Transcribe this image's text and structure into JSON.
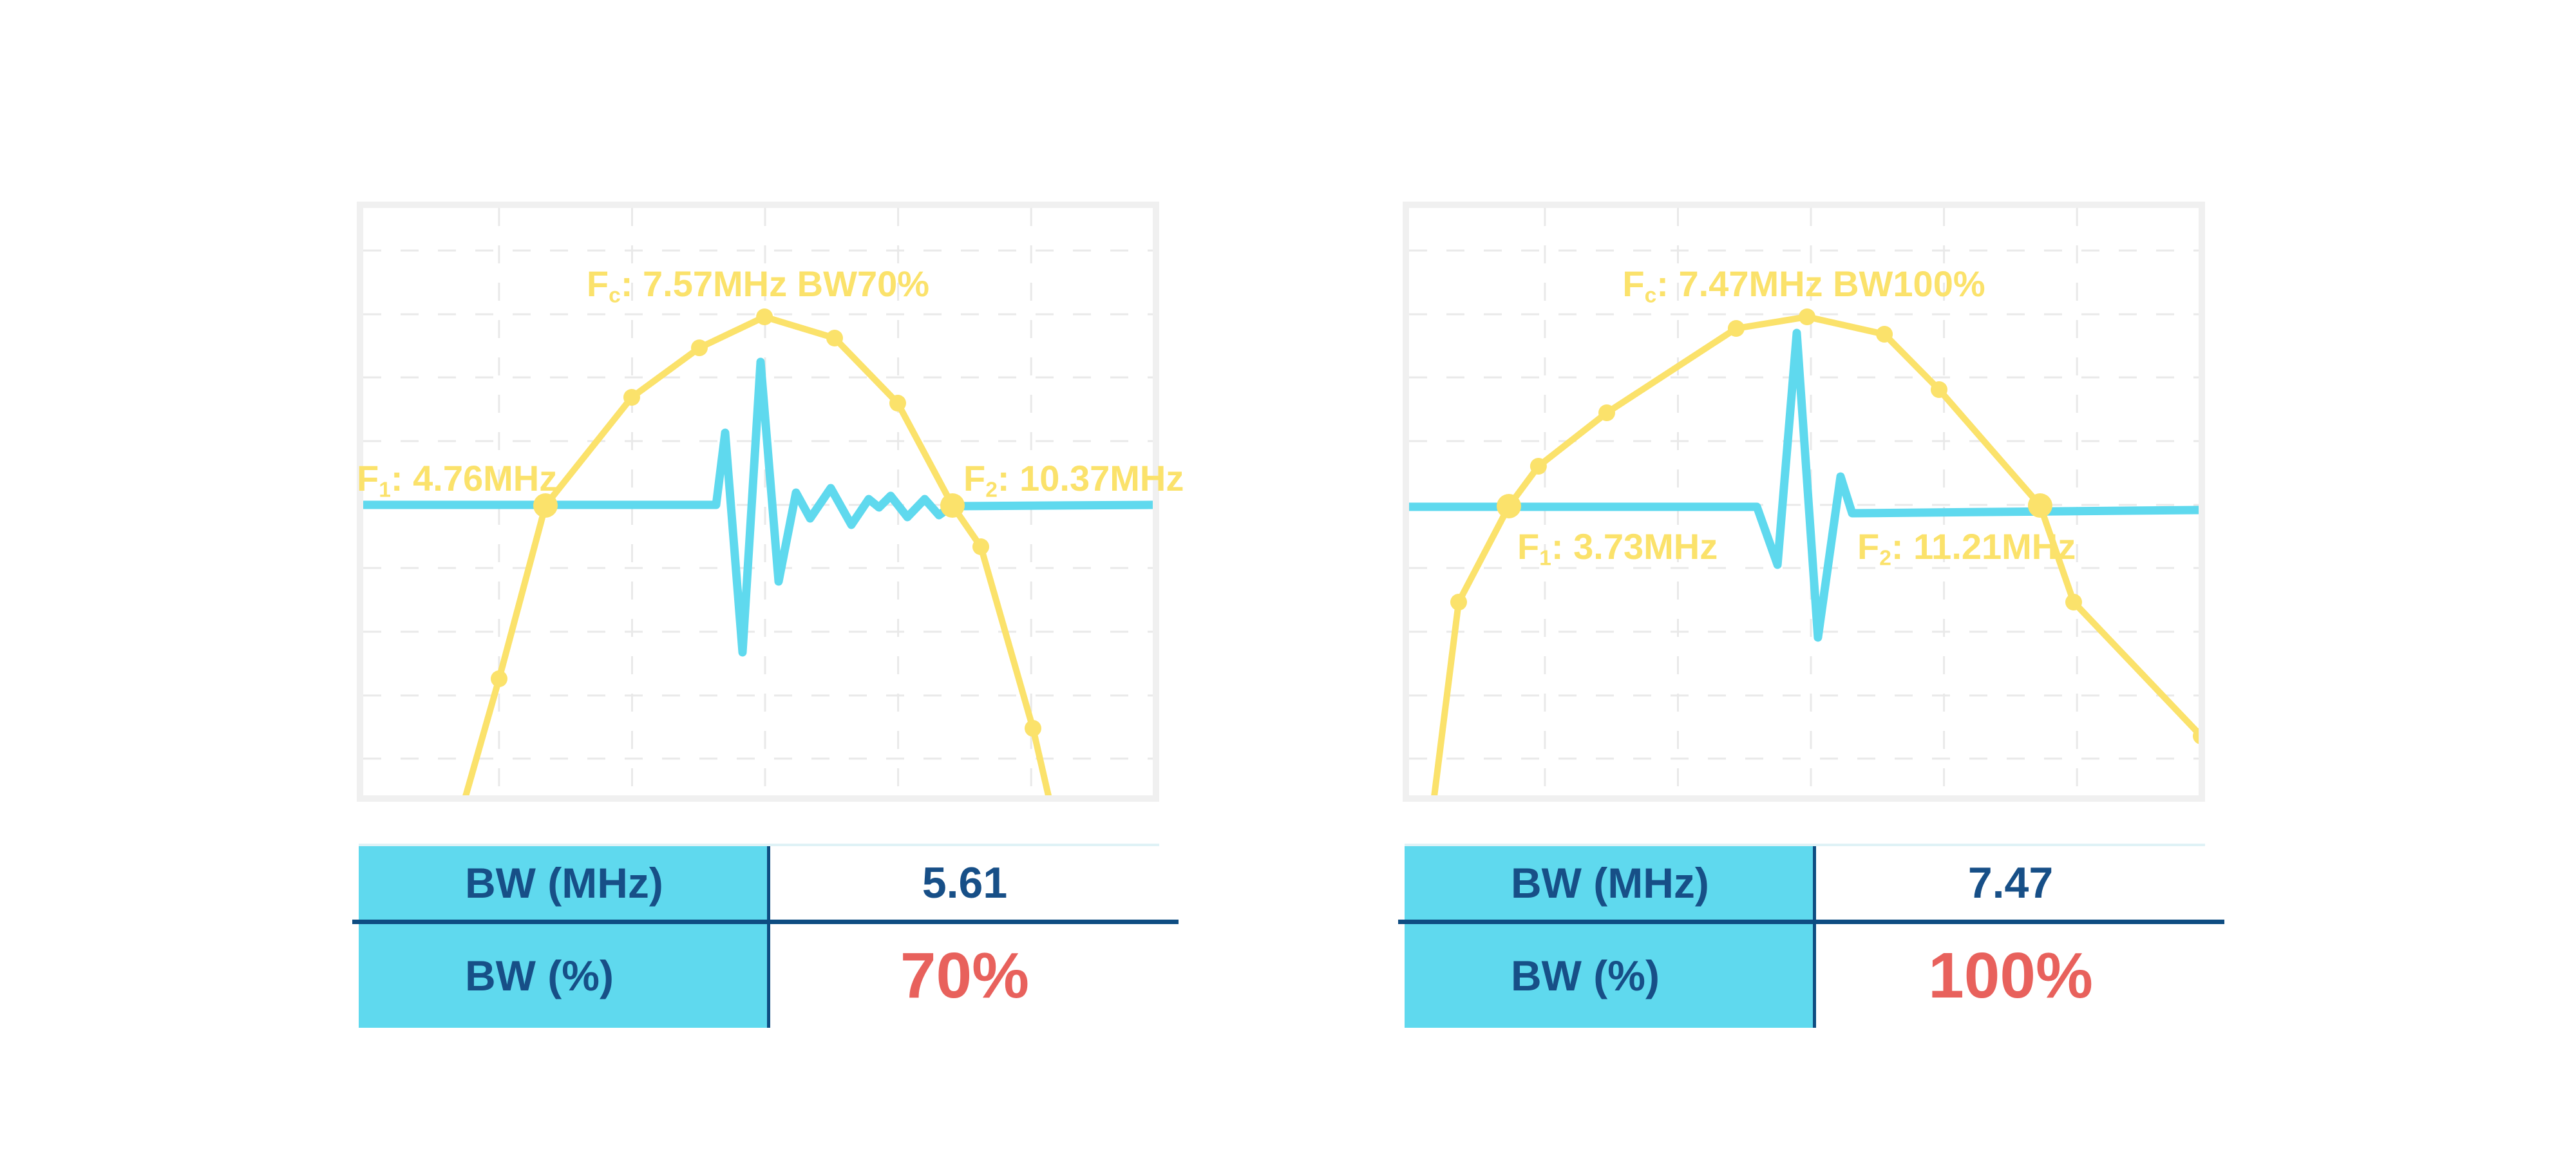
{
  "colors": {
    "yellow": "#FBE26B",
    "cyan": "#5FD9EE",
    "navy_text": "#174F87",
    "navy_line": "#0E4D82",
    "red": "#E8615C",
    "grid": "#E9E9E9",
    "frame": "#F0F0F0",
    "table_topline": "#DFF2F6"
  },
  "panels": [
    {
      "id": "bw70",
      "labels": {
        "fc": {
          "f": "F",
          "sub": "c",
          "text": ": 7.57MHz BW70%"
        },
        "f1": {
          "f": "F",
          "sub": "1",
          "text": ": 4.76MHz"
        },
        "f2": {
          "f": "F",
          "sub": "2",
          "text": ": 10.37MHz"
        }
      },
      "table": {
        "rows": [
          {
            "label": "BW (MHz)",
            "value": "5.61"
          },
          {
            "label": "BW (%)",
            "value": "70%"
          }
        ]
      },
      "chart_data": {
        "type": "line",
        "description": "Transducer frequency spectrum envelope (yellow, with point markers) and RF pulse-echo waveform with ringing (cyan); no axis ticks or labels shown",
        "values": {
          "fc_mhz": 7.57,
          "f1_mhz": 4.76,
          "f2_mhz": 10.37,
          "bw_mhz": 5.61,
          "bw_pct": 70
        },
        "baseline_frac": 0.5055,
        "grid": {
          "v_fracs": [
            0.172,
            0.3405,
            0.509,
            0.6775,
            0.846
          ],
          "h_fracs": [
            0.0724,
            0.1809,
            0.2884,
            0.3969,
            0.5055,
            0.6129,
            0.7215,
            0.83,
            0.9375
          ]
        },
        "series": [
          {
            "name": "spectrum-envelope",
            "color_key": "yellow",
            "points_frac": [
              [
                0.1289,
                1.0055
              ],
              [
                0.1721,
                0.8015
              ],
              [
                0.2308,
                0.5066
              ],
              [
                0.3401,
                0.3224
              ],
              [
                0.4258,
                0.238
              ],
              [
                0.5082,
                0.1853
              ],
              [
                0.5971,
                0.2215
              ],
              [
                0.677,
                0.3322
              ],
              [
                0.7463,
                0.5066
              ],
              [
                0.7822,
                0.5768
              ],
              [
                0.8483,
                0.886
              ],
              [
                0.8711,
                1.0197
              ]
            ]
          },
          {
            "name": "rf-pulse",
            "color_key": "cyan",
            "points_frac": [
              [
                0,
                0.5055
              ],
              [
                0.447,
                0.5055
              ],
              [
                0.4584,
                0.3827
              ],
              [
                0.4804,
                0.7566
              ],
              [
                0.5033,
                0.2621
              ],
              [
                0.5261,
                0.636
              ],
              [
                0.5481,
                0.4846
              ],
              [
                0.5661,
                0.5285
              ],
              [
                0.5922,
                0.477
              ],
              [
                0.6183,
                0.5395
              ],
              [
                0.6403,
                0.4956
              ],
              [
                0.6533,
                0.5099
              ],
              [
                0.668,
                0.4901
              ],
              [
                0.6892,
                0.5263
              ],
              [
                0.7112,
                0.4956
              ],
              [
                0.7292,
                0.523
              ],
              [
                0.7455,
                0.5077
              ],
              [
                1,
                0.5055
              ]
            ]
          }
        ],
        "marker_indices": [
          1,
          2,
          3,
          4,
          5,
          6,
          7,
          8,
          9,
          10
        ],
        "big_marker_indices": [
          2,
          8
        ]
      }
    },
    {
      "id": "bw100",
      "labels": {
        "fc": {
          "f": "F",
          "sub": "c",
          "text": ": 7.47MHz BW100%"
        },
        "f1": {
          "f": "F",
          "sub": "1",
          "text": ": 3.73MHz"
        },
        "f2": {
          "f": "F",
          "sub": "2",
          "text": ": 11.21MHz"
        }
      },
      "table": {
        "rows": [
          {
            "label": "BW (MHz)",
            "value": "7.47"
          },
          {
            "label": "BW (%)",
            "value": "100%"
          }
        ]
      },
      "chart_data": {
        "type": "line",
        "description": "Broadband transducer frequency spectrum envelope (yellow, with point markers) and short RF pulse waveform (cyan); no axis ticks or labels shown",
        "values": {
          "fc_mhz": 7.47,
          "f1_mhz": 3.73,
          "f2_mhz": 11.21,
          "bw_mhz": 7.47,
          "bw_pct": 100
        },
        "baseline_frac": 0.5088,
        "grid": {
          "v_fracs": [
            0.172,
            0.3405,
            0.509,
            0.6775,
            0.846
          ],
          "h_fracs": [
            0.0724,
            0.1809,
            0.2884,
            0.3969,
            0.5055,
            0.6129,
            0.7215,
            0.83,
            0.9375
          ]
        },
        "series": [
          {
            "name": "spectrum-envelope",
            "color_key": "yellow",
            "points_frac": [
              [
                0.0302,
                1.0197
              ],
              [
                0.0628,
                0.6711
              ],
              [
                0.1264,
                0.5077
              ],
              [
                0.1639,
                0.4397
              ],
              [
                0.2504,
                0.3487
              ],
              [
                0.4143,
                0.205
              ],
              [
                0.5041,
                0.1853
              ],
              [
                0.602,
                0.2149
              ],
              [
                0.6713,
                0.3092
              ],
              [
                0.7993,
                0.5066
              ],
              [
                0.8418,
                0.6711
              ],
              [
                1.0033,
                0.8991
              ]
            ]
          },
          {
            "name": "rf-pulse",
            "color_key": "cyan",
            "points_frac": [
              [
                0,
                0.5088
              ],
              [
                0.4405,
                0.5088
              ],
              [
                0.4666,
                0.6075
              ],
              [
                0.491,
                0.2127
              ],
              [
                0.5179,
                0.7314
              ],
              [
                0.5465,
                0.4572
              ],
              [
                0.5612,
                0.5197
              ],
              [
                1,
                0.5143
              ]
            ]
          }
        ],
        "marker_indices": [
          1,
          2,
          3,
          4,
          5,
          6,
          7,
          8,
          9,
          10,
          11
        ],
        "big_marker_indices": [
          2,
          9
        ]
      }
    }
  ]
}
